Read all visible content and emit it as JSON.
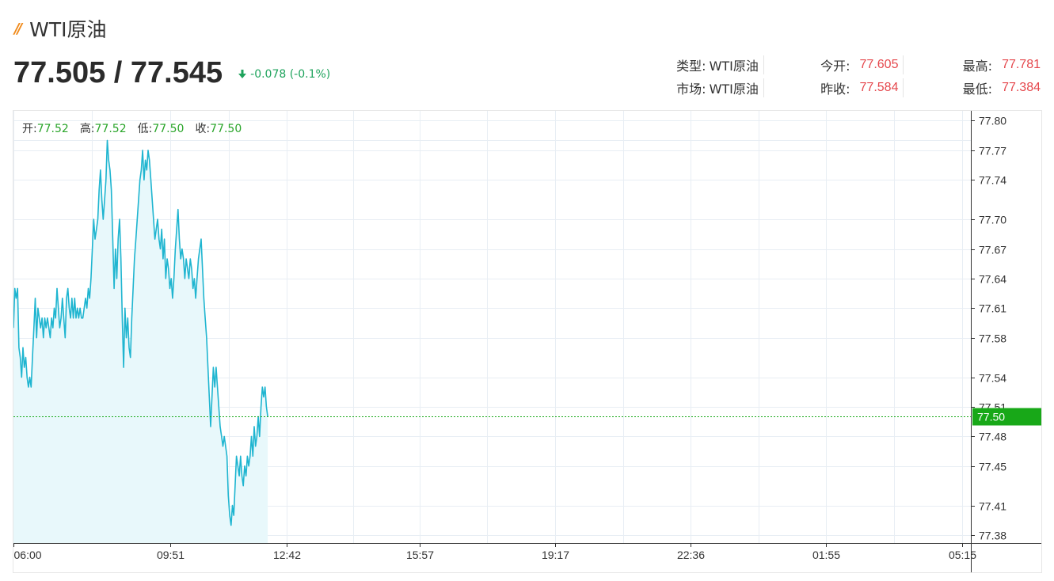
{
  "header": {
    "title": "WTI原油",
    "price": "77.505 / 77.545",
    "change": "-0.078 (-0.1%)"
  },
  "stats": {
    "row1": [
      {
        "label": "类型:",
        "value": "WTI原油",
        "kind": "text"
      },
      {
        "label": "今开:",
        "value": "77.605",
        "kind": "num"
      },
      {
        "label": "最高:",
        "value": "77.781",
        "kind": "num"
      }
    ],
    "row2": [
      {
        "label": "市场:",
        "value": "WTI原油",
        "kind": "text"
      },
      {
        "label": "昨收:",
        "value": "77.584",
        "kind": "num"
      },
      {
        "label": "最低:",
        "value": "77.384",
        "kind": "num"
      }
    ]
  },
  "ohlc": [
    {
      "label": "开:",
      "value": "77.52"
    },
    {
      "label": "高:",
      "value": "77.52"
    },
    {
      "label": "低:",
      "value": "77.50"
    },
    {
      "label": "收:",
      "value": "77.50"
    }
  ],
  "colors": {
    "line": "#1fb5d0",
    "fill": "#e8f8fb",
    "up": "#e5484d",
    "down": "#1ea35c",
    "current": "#18a818",
    "grid": "#e8eef4"
  },
  "chart_data": {
    "type": "area",
    "x_ticks": [
      "06:00",
      "09:51",
      "12:42",
      "15:57",
      "19:17",
      "22:36",
      "01:55",
      "05:15"
    ],
    "y_ticks": [
      77.38,
      77.41,
      77.45,
      77.48,
      77.51,
      77.54,
      77.58,
      77.61,
      77.64,
      77.67,
      77.7,
      77.74,
      77.77,
      77.8
    ],
    "ylim": [
      77.372,
      77.81
    ],
    "current_price": 77.5,
    "current_label": "77.50",
    "x_range_minutes": [
      0,
      1408
    ],
    "x_tick_minutes": [
      0,
      231,
      402,
      597,
      797,
      996,
      1195,
      1395
    ],
    "series": [
      {
        "values": [
          [
            0,
            77.59
          ],
          [
            2,
            77.63
          ],
          [
            4,
            77.62
          ],
          [
            6,
            77.63
          ],
          [
            8,
            77.57
          ],
          [
            10,
            77.56
          ],
          [
            12,
            77.54
          ],
          [
            14,
            77.57
          ],
          [
            16,
            77.55
          ],
          [
            18,
            77.56
          ],
          [
            20,
            77.54
          ],
          [
            22,
            77.53
          ],
          [
            24,
            77.54
          ],
          [
            26,
            77.53
          ],
          [
            28,
            77.56
          ],
          [
            30,
            77.59
          ],
          [
            32,
            77.62
          ],
          [
            34,
            77.58
          ],
          [
            36,
            77.61
          ],
          [
            38,
            77.6
          ],
          [
            40,
            77.59
          ],
          [
            42,
            77.6
          ],
          [
            44,
            77.58
          ],
          [
            46,
            77.6
          ],
          [
            48,
            77.59
          ],
          [
            50,
            77.6
          ],
          [
            52,
            77.59
          ],
          [
            54,
            77.58
          ],
          [
            56,
            77.6
          ],
          [
            58,
            77.59
          ],
          [
            60,
            77.61
          ],
          [
            62,
            77.6
          ],
          [
            64,
            77.63
          ],
          [
            66,
            77.61
          ],
          [
            68,
            77.59
          ],
          [
            70,
            77.6
          ],
          [
            72,
            77.62
          ],
          [
            74,
            77.6
          ],
          [
            76,
            77.58
          ],
          [
            78,
            77.62
          ],
          [
            80,
            77.63
          ],
          [
            82,
            77.61
          ],
          [
            84,
            77.6
          ],
          [
            86,
            77.62
          ],
          [
            88,
            77.6
          ],
          [
            90,
            77.62
          ],
          [
            92,
            77.6
          ],
          [
            94,
            77.61
          ],
          [
            96,
            77.6
          ],
          [
            98,
            77.61
          ],
          [
            100,
            77.6
          ],
          [
            102,
            77.6
          ],
          [
            104,
            77.61
          ],
          [
            106,
            77.62
          ],
          [
            108,
            77.61
          ],
          [
            110,
            77.63
          ],
          [
            112,
            77.62
          ],
          [
            114,
            77.64
          ],
          [
            116,
            77.67
          ],
          [
            118,
            77.7
          ],
          [
            120,
            77.68
          ],
          [
            122,
            77.69
          ],
          [
            124,
            77.7
          ],
          [
            126,
            77.73
          ],
          [
            128,
            77.75
          ],
          [
            130,
            77.72
          ],
          [
            132,
            77.7
          ],
          [
            134,
            77.72
          ],
          [
            136,
            77.74
          ],
          [
            138,
            77.78
          ],
          [
            140,
            77.76
          ],
          [
            142,
            77.75
          ],
          [
            144,
            77.73
          ],
          [
            146,
            77.68
          ],
          [
            148,
            77.63
          ],
          [
            150,
            77.67
          ],
          [
            152,
            77.64
          ],
          [
            154,
            77.68
          ],
          [
            156,
            77.7
          ],
          [
            158,
            77.66
          ],
          [
            160,
            77.6
          ],
          [
            162,
            77.55
          ],
          [
            164,
            77.61
          ],
          [
            166,
            77.58
          ],
          [
            168,
            77.6
          ],
          [
            170,
            77.57
          ],
          [
            172,
            77.56
          ],
          [
            174,
            77.6
          ],
          [
            176,
            77.63
          ],
          [
            178,
            77.66
          ],
          [
            180,
            77.68
          ],
          [
            182,
            77.7
          ],
          [
            184,
            77.72
          ],
          [
            186,
            77.74
          ],
          [
            188,
            77.75
          ],
          [
            190,
            77.77
          ],
          [
            192,
            77.74
          ],
          [
            194,
            77.76
          ],
          [
            196,
            77.75
          ],
          [
            198,
            77.77
          ],
          [
            200,
            77.76
          ],
          [
            202,
            77.74
          ],
          [
            204,
            77.72
          ],
          [
            206,
            77.7
          ],
          [
            208,
            77.68
          ],
          [
            210,
            77.69
          ],
          [
            212,
            77.7
          ],
          [
            214,
            77.68
          ],
          [
            216,
            77.67
          ],
          [
            218,
            77.69
          ],
          [
            220,
            77.66
          ],
          [
            222,
            77.68
          ],
          [
            224,
            77.64
          ],
          [
            226,
            77.66
          ],
          [
            228,
            77.65
          ],
          [
            230,
            77.63
          ],
          [
            232,
            77.64
          ],
          [
            234,
            77.62
          ],
          [
            236,
            77.64
          ],
          [
            238,
            77.67
          ],
          [
            240,
            77.69
          ],
          [
            242,
            77.71
          ],
          [
            244,
            77.68
          ],
          [
            246,
            77.66
          ],
          [
            248,
            77.67
          ],
          [
            250,
            77.66
          ],
          [
            252,
            77.64
          ],
          [
            254,
            77.66
          ],
          [
            256,
            77.65
          ],
          [
            258,
            77.64
          ],
          [
            260,
            77.66
          ],
          [
            262,
            77.65
          ],
          [
            264,
            77.63
          ],
          [
            266,
            77.64
          ],
          [
            268,
            77.62
          ],
          [
            270,
            77.64
          ],
          [
            272,
            77.66
          ],
          [
            274,
            77.67
          ],
          [
            276,
            77.68
          ],
          [
            278,
            77.65
          ],
          [
            280,
            77.62
          ],
          [
            282,
            77.6
          ],
          [
            284,
            77.58
          ],
          [
            286,
            77.55
          ],
          [
            288,
            77.52
          ],
          [
            290,
            77.49
          ],
          [
            292,
            77.52
          ],
          [
            294,
            77.55
          ],
          [
            296,
            77.53
          ],
          [
            298,
            77.55
          ],
          [
            300,
            77.53
          ],
          [
            302,
            77.51
          ],
          [
            304,
            77.49
          ],
          [
            306,
            77.48
          ],
          [
            308,
            77.47
          ],
          [
            310,
            77.48
          ],
          [
            312,
            77.47
          ],
          [
            314,
            77.46
          ],
          [
            316,
            77.42
          ],
          [
            318,
            77.4
          ],
          [
            320,
            77.39
          ],
          [
            322,
            77.41
          ],
          [
            324,
            77.4
          ],
          [
            326,
            77.43
          ],
          [
            328,
            77.46
          ],
          [
            330,
            77.45
          ],
          [
            332,
            77.44
          ],
          [
            334,
            77.46
          ],
          [
            336,
            77.44
          ],
          [
            338,
            77.43
          ],
          [
            340,
            77.45
          ],
          [
            342,
            77.44
          ],
          [
            344,
            77.46
          ],
          [
            346,
            77.45
          ],
          [
            348,
            77.46
          ],
          [
            350,
            77.48
          ],
          [
            352,
            77.46
          ],
          [
            354,
            77.49
          ],
          [
            356,
            77.47
          ],
          [
            358,
            77.48
          ],
          [
            360,
            77.5
          ],
          [
            362,
            77.48
          ],
          [
            364,
            77.51
          ],
          [
            366,
            77.53
          ],
          [
            368,
            77.52
          ],
          [
            370,
            77.53
          ],
          [
            372,
            77.51
          ],
          [
            374,
            77.5
          ]
        ]
      }
    ]
  }
}
